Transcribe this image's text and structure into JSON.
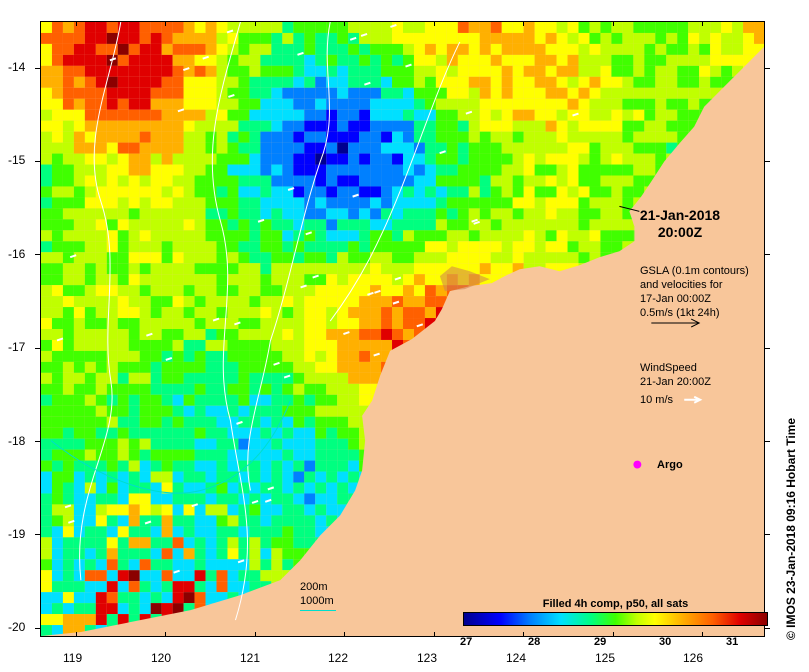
{
  "map": {
    "x_ticks": [
      "119",
      "120",
      "121",
      "122",
      "123",
      "124",
      "125",
      "126"
    ],
    "y_ticks": [
      "-14",
      "-15",
      "-16",
      "-17",
      "-18",
      "-19",
      "-20"
    ],
    "x_range": [
      118.6,
      126.7
    ],
    "y_range": [
      -20.1,
      -13.5
    ],
    "land_color": "#f8c69a"
  },
  "annotations": {
    "date": "21-Jan-2018",
    "time": "20:00Z",
    "gsla_line1": "GSLA (0.1m contours)",
    "gsla_line2": "and velocities for",
    "gsla_line3": "17-Jan 00:00Z",
    "gsla_line4": "0.5m/s (1kt 24h)",
    "wind_line1": "WindSpeed",
    "wind_line2": "21-Jan 20:00Z",
    "wind_line3": "10 m/s",
    "argo": "Argo",
    "depth_200": "200m",
    "depth_1000": "1000m",
    "credit": "© IMOS 23-Jan-2018 09:16 Hobart Time"
  },
  "colorbar": {
    "title": "Filled 4h comp, p50, all sats",
    "ticks": [
      "27",
      "28",
      "29",
      "30",
      "31"
    ],
    "range": [
      26.3,
      31.5
    ]
  }
}
